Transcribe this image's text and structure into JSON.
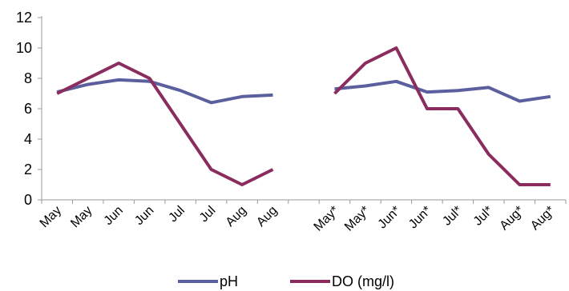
{
  "chart_data": {
    "type": "line",
    "categories": [
      "May",
      "May",
      "Jun",
      "Jun",
      "Jul",
      "Jul",
      "Aug",
      "Aug",
      "",
      "May*",
      "May*",
      "Jun*",
      "Jun*",
      "Jul*",
      "Jul*",
      "Aug*",
      "Aug*"
    ],
    "series": [
      {
        "name": "pH",
        "color": "#5b5f9e",
        "values": [
          7.1,
          7.6,
          7.9,
          7.8,
          7.2,
          6.4,
          6.8,
          6.9,
          null,
          7.3,
          7.5,
          7.8,
          7.1,
          7.2,
          7.4,
          6.5,
          6.8
        ]
      },
      {
        "name": "DO (mg/l)",
        "color": "#8b2c5e",
        "values": [
          7.0,
          8.0,
          9.0,
          8.0,
          5.0,
          2.0,
          1.0,
          2.0,
          null,
          7.0,
          9.0,
          10.0,
          6.0,
          6.0,
          3.0,
          1.0,
          1.0
        ]
      }
    ],
    "yticks": [
      "0",
      "2",
      "4",
      "6",
      "8",
      "10",
      "12"
    ],
    "ylim": [
      0,
      12
    ],
    "grid": false,
    "legend_position": "bottom",
    "title": "",
    "xlabel": "",
    "ylabel": ""
  }
}
